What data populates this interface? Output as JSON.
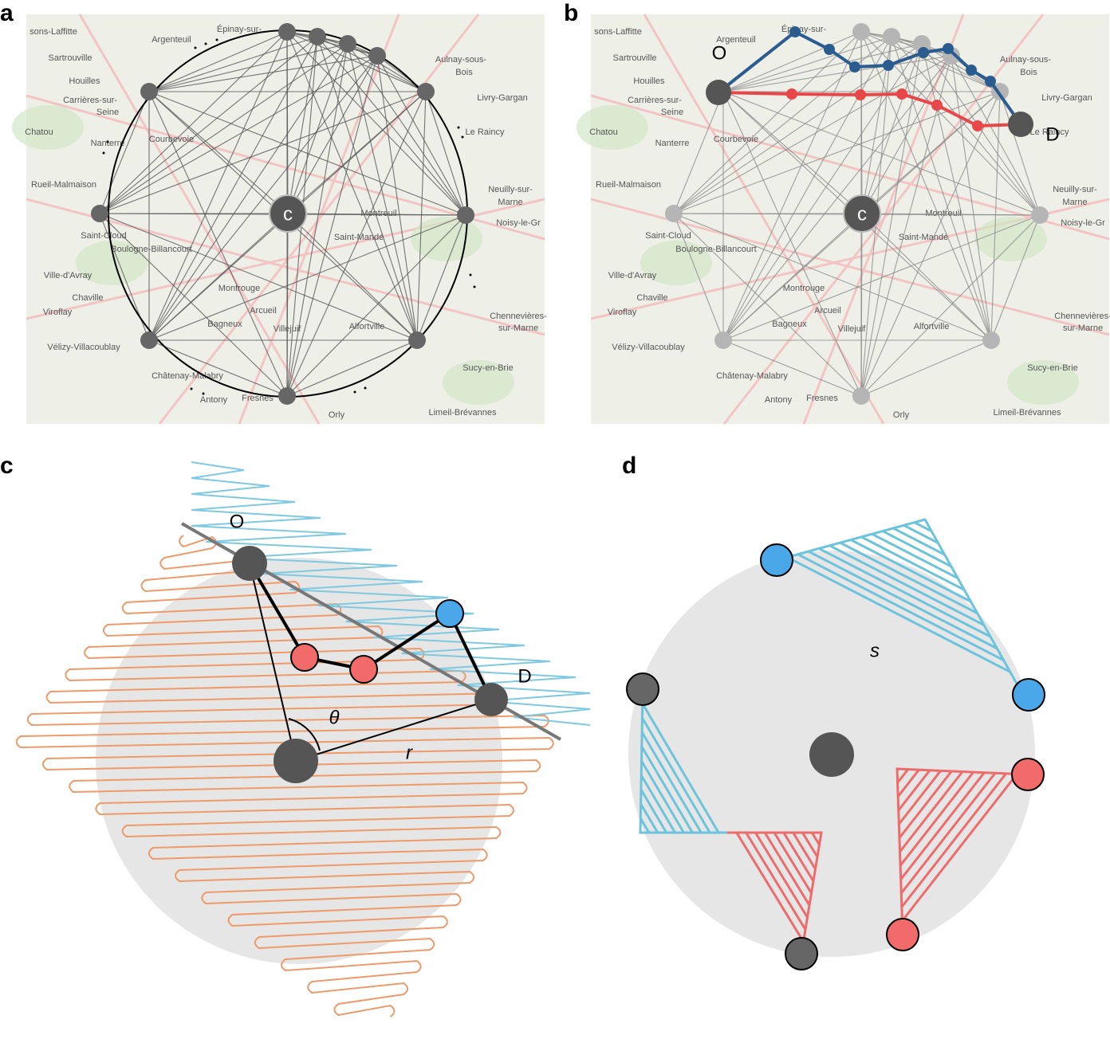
{
  "panels": [
    {
      "letter": "a"
    },
    {
      "letter": "b"
    },
    {
      "letter": "c"
    },
    {
      "letter": "d"
    }
  ],
  "center_label": "c",
  "origin_label": "O",
  "destination_label": "D",
  "angle_label": "θ",
  "radius_label": "r",
  "arc_label": "s",
  "map_labels": [
    "sons-Laffitte",
    "Argenteuil",
    "Épinay-sur-",
    "Sartrouville",
    "Houilles",
    "Carrières-sur-",
    "Seine",
    "Aulnay-sous-",
    "Bois",
    "Livry-Gargan",
    "Le Raincy",
    "Chatou",
    "Nanterre",
    "Courbevoie",
    "Rueil-Malmaison",
    "Neuilly-sur-",
    "Marne",
    "Noisy-le-Gr",
    "Montreuil",
    "Saint-Cloud",
    "Boulogne-Billancourt",
    "Saint-Mandé",
    "Ville-d'Avray",
    "Chaville",
    "Viroflay",
    "Montrouge",
    "Arcueil",
    "Bagneux",
    "Vélizy-Villacoublay",
    "Villejuif",
    "Alfortville",
    "Sucy-en-Brie",
    "Châtenay-Malabry",
    "Antony",
    "Fresnes",
    "Orly",
    "Limeil-Brévannes",
    "Chennevières-",
    "sur-Marne"
  ]
}
